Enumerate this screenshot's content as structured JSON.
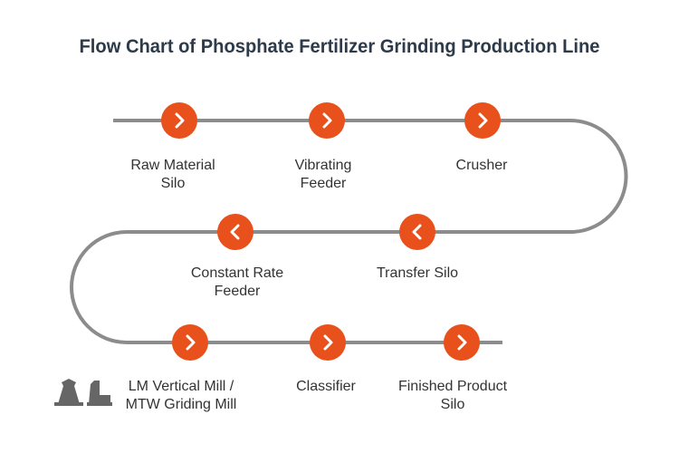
{
  "title": "Flow Chart of Phosphate Fertilizer Grinding Production Line",
  "nodes": [
    {
      "lines": [
        "Raw Material",
        "Silo"
      ]
    },
    {
      "lines": [
        "Vibrating",
        "Feeder"
      ]
    },
    {
      "lines": [
        "Crusher"
      ]
    },
    {
      "lines": [
        "Transfer Silo"
      ]
    },
    {
      "lines": [
        "Constant Rate",
        "Feeder"
      ]
    },
    {
      "lines": [
        "LM Vertical Mill /",
        "MTW Griding Mill"
      ]
    },
    {
      "lines": [
        "Classifier"
      ]
    },
    {
      "lines": [
        "Finished Product",
        "Silo"
      ]
    }
  ]
}
